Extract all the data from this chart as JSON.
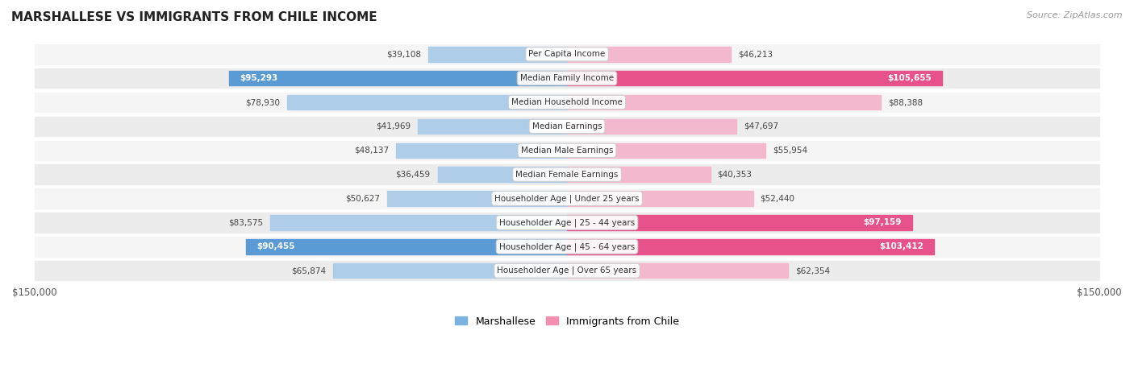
{
  "title": "MARSHALLESE VS IMMIGRANTS FROM CHILE INCOME",
  "source": "Source: ZipAtlas.com",
  "categories": [
    "Per Capita Income",
    "Median Family Income",
    "Median Household Income",
    "Median Earnings",
    "Median Male Earnings",
    "Median Female Earnings",
    "Householder Age | Under 25 years",
    "Householder Age | 25 - 44 years",
    "Householder Age | 45 - 64 years",
    "Householder Age | Over 65 years"
  ],
  "marshallese": [
    39108,
    95293,
    78930,
    41969,
    48137,
    36459,
    50627,
    83575,
    90455,
    65874
  ],
  "chile": [
    46213,
    105655,
    88388,
    47697,
    55954,
    40353,
    52440,
    97159,
    103412,
    62354
  ],
  "marshallese_labels": [
    "$39,108",
    "$95,293",
    "$78,930",
    "$41,969",
    "$48,137",
    "$36,459",
    "$50,627",
    "$83,575",
    "$90,455",
    "$65,874"
  ],
  "chile_labels": [
    "$46,213",
    "$105,655",
    "$88,388",
    "$47,697",
    "$55,954",
    "$40,353",
    "$52,440",
    "$97,159",
    "$103,412",
    "$62,354"
  ],
  "marshallese_label_inside": [
    false,
    true,
    false,
    false,
    false,
    false,
    false,
    false,
    true,
    false
  ],
  "chile_label_inside": [
    false,
    true,
    false,
    false,
    false,
    false,
    false,
    true,
    true,
    false
  ],
  "max_val": 150000,
  "blue_light": "#aecde8",
  "blue_dark": "#5b9bd5",
  "pink_light": "#f4b8ce",
  "pink_dark": "#e8528a",
  "row_bg_light": "#f5f5f5",
  "row_bg_dark": "#ececec",
  "legend_blue": "#7ab3e0",
  "legend_pink": "#f48faf"
}
